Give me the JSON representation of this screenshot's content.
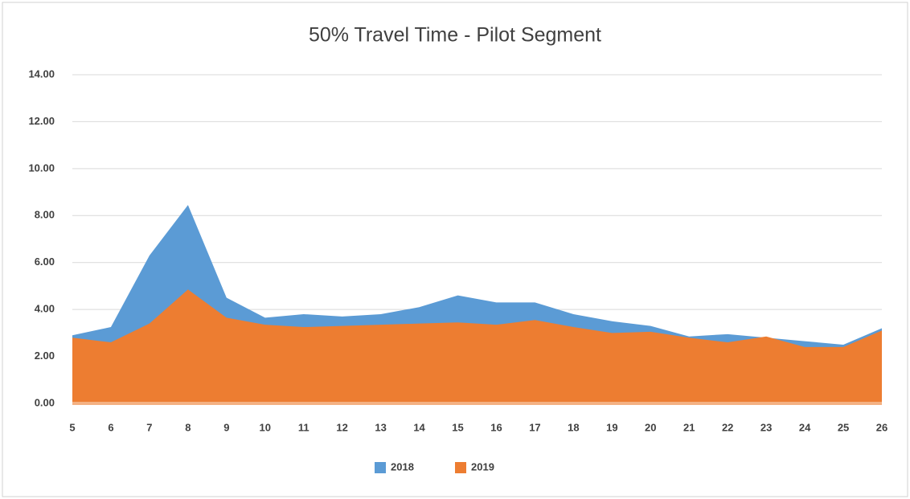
{
  "chart_data": {
    "type": "area",
    "title": "50% Travel Time - Pilot Segment",
    "categories": [
      "5",
      "6",
      "7",
      "8",
      "9",
      "10",
      "11",
      "12",
      "13",
      "14",
      "15",
      "16",
      "17",
      "18",
      "19",
      "20",
      "21",
      "22",
      "23",
      "24",
      "25",
      "26"
    ],
    "series": [
      {
        "name": "2018",
        "color": "#5b9bd5",
        "values": [
          2.9,
          3.25,
          6.3,
          8.45,
          4.5,
          3.65,
          3.8,
          3.7,
          3.8,
          4.1,
          4.6,
          4.3,
          4.3,
          3.8,
          3.5,
          3.3,
          2.85,
          2.95,
          2.8,
          2.65,
          2.5,
          3.2
        ]
      },
      {
        "name": "2019",
        "color": "#ed7d31",
        "values": [
          2.8,
          2.6,
          3.4,
          4.85,
          3.65,
          3.35,
          3.25,
          3.3,
          3.35,
          3.4,
          3.45,
          3.35,
          3.55,
          3.25,
          3.0,
          3.05,
          2.8,
          2.6,
          2.85,
          2.4,
          2.4,
          3.1
        ]
      }
    ],
    "ylim": [
      0,
      14
    ],
    "yticks": [
      {
        "value": 0,
        "label": "0.00"
      },
      {
        "value": 2,
        "label": "2.00"
      },
      {
        "value": 4,
        "label": "4.00"
      },
      {
        "value": 6,
        "label": "6.00"
      },
      {
        "value": 8,
        "label": "8.00"
      },
      {
        "value": 10,
        "label": "10.00"
      },
      {
        "value": 12,
        "label": "12.00"
      },
      {
        "value": 14,
        "label": "14.00"
      }
    ],
    "grid": true,
    "legend": "bottom"
  }
}
